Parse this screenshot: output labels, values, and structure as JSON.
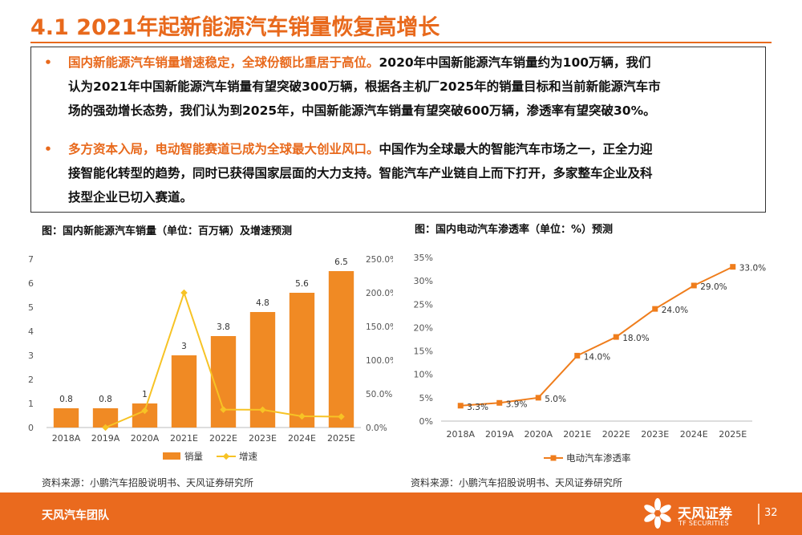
{
  "page": {
    "title": "4.1 2021年起新能源汽车销量恢复高增长",
    "footer_team": "天风汽车团队",
    "logo_text": "天风证券",
    "logo_sub": "TF SECURITIES",
    "page_number": "32"
  },
  "bullets": [
    {
      "highlight": "国内新能源汽车销量增速稳定，全球份额比重居于高位。",
      "lines": [
        "2020年中国新能源汽车销量约为100万辆，我们",
        "认为2021年中国新能源汽车销量有望突破300万辆，根据各主机厂2025年的销量目标和当前新能源汽车市",
        "场的强劲增长态势，我们认为到2025年，中国新能源汽车销量有望突破600万辆，渗透率有望突破30%。"
      ]
    },
    {
      "highlight": "多方资本入局，电动智能赛道已成为全球最大创业风口。",
      "lines": [
        "中国作为全球最大的智能汽车市场之一，正全力迎",
        "接智能化转型的趋势，同时已获得国家层面的大力支持。智能汽车产业链自上而下打开，多家整车企业及科",
        "技型企业已切入赛道。"
      ]
    }
  ],
  "charts": {
    "left_title": "图：国内新能源汽车销量（单位：百万辆）及增速预测",
    "right_title": "图：国内电动汽车渗透率（单位：%）预测",
    "left_source": "资料来源：小鹏汽车招股说明书、天风证券研究所",
    "right_source": "资料来源：小鹏汽车招股说明书、天风证券研究所"
  },
  "colors": {
    "accent": "#e8691c",
    "bar": "#f08a24",
    "line_yellow": "#f7c325",
    "line_orange": "#ef7d1c"
  },
  "chart_data": [
    {
      "type": "bar",
      "categories": [
        "2018A",
        "2019A",
        "2020A",
        "2021E",
        "2022E",
        "2023E",
        "2024E",
        "2025E"
      ],
      "series": [
        {
          "name": "销量",
          "type": "bar",
          "values": [
            0.8,
            0.8,
            1,
            3,
            3.8,
            4.8,
            5.6,
            6.5
          ],
          "labels": [
            "0.8",
            "0.8",
            "1",
            "3",
            "3.8",
            "4.8",
            "5.6",
            "6.5"
          ]
        },
        {
          "name": "增速",
          "type": "line",
          "axis": "right",
          "values": [
            null,
            0.0,
            25.0,
            200.0,
            26.7,
            26.3,
            16.7,
            16.1
          ]
        }
      ],
      "y_ticks": [
        "0",
        "1",
        "2",
        "3",
        "4",
        "5",
        "6",
        "7"
      ],
      "ylim": [
        0,
        7
      ],
      "y2_ticks": [
        "0.0%",
        "50.0%",
        "100.0%",
        "150.0%",
        "200.0%",
        "250.0%"
      ],
      "y2lim": [
        0,
        250
      ],
      "legend_position": "bottom",
      "grid": false
    },
    {
      "type": "line",
      "categories": [
        "2018A",
        "2019A",
        "2020A",
        "2021E",
        "2022E",
        "2023E",
        "2024E",
        "2025E"
      ],
      "series": [
        {
          "name": "电动汽车渗透率",
          "values": [
            3.3,
            3.9,
            5.0,
            14.0,
            18.0,
            24.0,
            29.0,
            33.0
          ],
          "labels": [
            "3.3%",
            "3.9%",
            "5.0%",
            "14.0%",
            "18.0%",
            "24.0%",
            "29.0%",
            "33.0%"
          ]
        }
      ],
      "y_ticks": [
        "0%",
        "5%",
        "10%",
        "15%",
        "20%",
        "25%",
        "30%",
        "35%"
      ],
      "ylim": [
        0,
        35
      ],
      "legend_position": "bottom",
      "grid": false
    }
  ]
}
